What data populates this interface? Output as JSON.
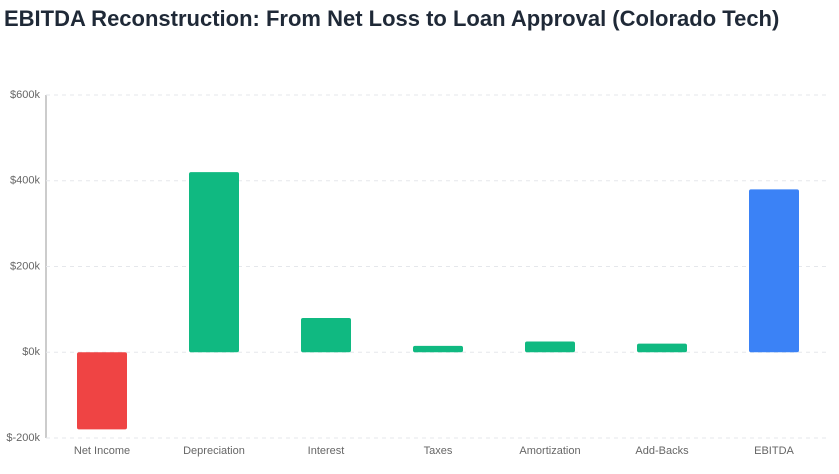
{
  "chart_data": {
    "type": "bar",
    "title": "EBITDA Reconstruction: From Net Loss to Loan Approval (Colorado Tech)",
    "categories": [
      "Net Income",
      "Depreciation",
      "Interest",
      "Taxes",
      "Amortization",
      "Add-Backs",
      "EBITDA"
    ],
    "values": [
      -180000,
      420000,
      80000,
      15000,
      25000,
      20000,
      380000
    ],
    "colors": [
      "#ef4444",
      "#10b981",
      "#10b981",
      "#10b981",
      "#10b981",
      "#10b981",
      "#3b82f6"
    ],
    "ylim": [
      -200000,
      600000
    ],
    "yticks": [
      {
        "value": -200000,
        "label": "$-200k"
      },
      {
        "value": 0,
        "label": "$0k"
      },
      {
        "value": 200000,
        "label": "$200k"
      },
      {
        "value": 400000,
        "label": "$400k"
      },
      {
        "value": 600000,
        "label": "$600k"
      }
    ],
    "grid": true
  }
}
